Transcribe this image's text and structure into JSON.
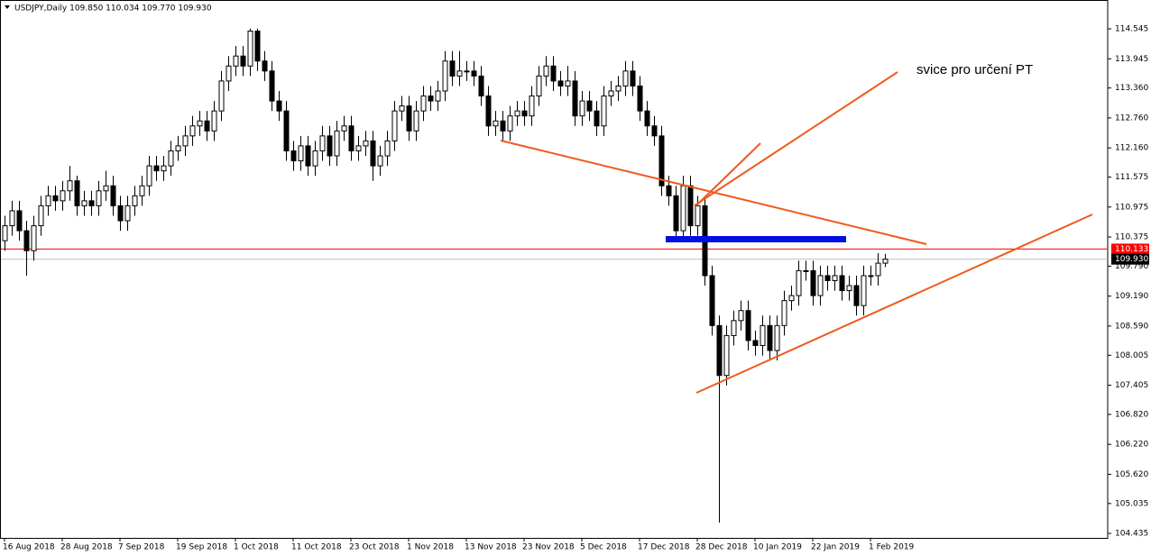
{
  "chart_data": {
    "type": "candlestick",
    "title": "USDJPY,Daily  109.850 110.034 109.770 109.930",
    "categories": [
      "16 Aug 2018",
      null,
      null,
      null,
      null,
      null,
      null,
      null,
      "28 Aug 2018",
      null,
      null,
      null,
      null,
      null,
      null,
      null,
      "7 Sep 2018",
      null,
      null,
      null,
      null,
      null,
      null,
      null,
      "19 Sep 2018",
      null,
      null,
      null,
      null,
      null,
      null,
      null,
      "1 Oct 2018",
      null,
      null,
      null,
      null,
      null,
      null,
      null,
      "11 Oct 2018",
      null,
      null,
      null,
      null,
      null,
      null,
      null,
      "23 Oct 2018",
      null,
      null,
      null,
      null,
      null,
      null,
      null,
      "1 Nov 2018",
      null,
      null,
      null,
      null,
      null,
      null,
      null,
      "13 Nov 2018",
      null,
      null,
      null,
      null,
      null,
      null,
      null,
      "23 Nov 2018",
      null,
      null,
      null,
      null,
      null,
      null,
      null,
      "5 Dec 2018",
      null,
      null,
      null,
      null,
      null,
      null,
      null,
      "17 Dec 2018",
      null,
      null,
      null,
      null,
      null,
      null,
      null,
      "28 Dec 2018",
      null,
      null,
      null,
      null,
      null,
      null,
      null,
      "10 Jan 2019",
      null,
      null,
      null,
      null,
      null,
      null,
      null,
      "22 Jan 2019",
      null,
      null,
      null,
      null,
      null,
      null,
      null,
      "1 Feb 2019",
      null,
      null
    ],
    "open": [
      110.3,
      110.6,
      110.9,
      110.5,
      110.1,
      110.6,
      111.0,
      111.2,
      111.1,
      111.3,
      111.5,
      111.0,
      111.1,
      111.0,
      111.3,
      111.4,
      111.0,
      110.7,
      111.0,
      111.2,
      111.4,
      111.8,
      111.7,
      111.8,
      112.1,
      112.2,
      112.4,
      112.6,
      112.7,
      112.5,
      112.9,
      113.5,
      113.8,
      114.0,
      113.8,
      114.5,
      113.9,
      113.7,
      113.1,
      112.9,
      112.1,
      111.9,
      112.2,
      111.8,
      112.1,
      112.4,
      112.0,
      112.5,
      112.6,
      112.1,
      112.2,
      112.3,
      111.8,
      112.0,
      112.3,
      112.9,
      113.0,
      112.5,
      112.9,
      113.2,
      113.1,
      113.3,
      113.9,
      113.6,
      113.7,
      113.7,
      113.6,
      113.2,
      112.6,
      112.7,
      112.5,
      112.8,
      112.9,
      112.8,
      113.2,
      113.6,
      113.8,
      113.5,
      113.4,
      113.5,
      112.8,
      113.1,
      112.9,
      112.6,
      113.2,
      113.3,
      113.4,
      113.7,
      113.4,
      112.9,
      112.6,
      112.4,
      111.4,
      111.2,
      110.5,
      111.4,
      110.6,
      111.0,
      109.6,
      108.6,
      107.6,
      108.4,
      108.7,
      108.9,
      108.3,
      108.2,
      108.6,
      108.1,
      108.6,
      109.1,
      109.2,
      109.7,
      109.7,
      109.2,
      109.6,
      109.5,
      109.6,
      109.3,
      109.4,
      109.0,
      109.6,
      109.6,
      109.85
    ],
    "high": [
      110.8,
      111.1,
      111.1,
      110.7,
      110.8,
      111.2,
      111.4,
      111.4,
      111.5,
      111.8,
      111.6,
      111.3,
      111.3,
      111.5,
      111.7,
      111.6,
      111.2,
      111.2,
      111.4,
      111.6,
      112.0,
      112.0,
      112.0,
      112.3,
      112.4,
      112.6,
      112.8,
      112.9,
      112.9,
      113.1,
      113.7,
      114.0,
      114.2,
      114.2,
      114.55,
      114.55,
      114.1,
      113.9,
      113.3,
      113.1,
      112.3,
      112.4,
      112.4,
      112.3,
      112.6,
      112.6,
      112.7,
      112.8,
      112.8,
      112.4,
      112.5,
      112.5,
      112.2,
      112.5,
      113.1,
      113.2,
      113.2,
      113.1,
      113.4,
      113.4,
      113.5,
      114.1,
      114.1,
      114.1,
      113.9,
      113.9,
      113.8,
      113.4,
      112.9,
      112.9,
      113.0,
      113.1,
      113.1,
      113.4,
      113.8,
      114.0,
      114.0,
      113.7,
      113.8,
      113.7,
      113.3,
      113.3,
      113.1,
      113.4,
      113.5,
      113.6,
      113.9,
      113.9,
      113.6,
      113.1,
      112.8,
      112.6,
      111.6,
      111.4,
      111.6,
      111.6,
      111.2,
      111.2,
      109.8,
      108.8,
      108.6,
      108.9,
      109.1,
      109.1,
      108.5,
      108.8,
      108.8,
      108.8,
      109.3,
      109.4,
      109.9,
      109.9,
      109.9,
      109.8,
      109.8,
      109.8,
      109.8,
      109.6,
      109.6,
      109.8,
      109.8,
      110.05,
      110.034
    ],
    "low": [
      110.1,
      110.4,
      110.3,
      109.6,
      109.9,
      110.4,
      110.8,
      110.9,
      110.9,
      111.1,
      110.8,
      110.8,
      110.8,
      110.8,
      111.1,
      110.8,
      110.5,
      110.5,
      110.8,
      111.0,
      111.2,
      111.5,
      111.5,
      111.6,
      111.9,
      112.0,
      112.2,
      112.4,
      112.3,
      112.3,
      112.7,
      113.3,
      113.6,
      113.6,
      113.6,
      113.7,
      113.5,
      112.9,
      112.7,
      111.9,
      111.7,
      111.7,
      111.6,
      111.6,
      111.9,
      111.8,
      111.8,
      112.3,
      111.9,
      111.9,
      112.0,
      111.5,
      111.6,
      111.8,
      112.1,
      112.7,
      112.3,
      112.3,
      112.7,
      112.9,
      112.9,
      113.1,
      113.4,
      113.4,
      113.5,
      113.4,
      113.0,
      112.4,
      112.4,
      112.3,
      112.3,
      112.6,
      112.6,
      112.6,
      113.0,
      113.4,
      113.3,
      113.2,
      113.2,
      112.6,
      112.6,
      112.7,
      112.4,
      112.4,
      113.0,
      113.1,
      113.2,
      113.2,
      112.7,
      112.4,
      112.2,
      111.2,
      111.0,
      110.3,
      110.3,
      110.4,
      110.4,
      109.4,
      108.4,
      104.65,
      107.4,
      108.2,
      108.5,
      108.1,
      108.0,
      108.0,
      107.9,
      107.9,
      108.4,
      108.9,
      109.0,
      109.5,
      109.0,
      109.0,
      109.3,
      109.3,
      109.1,
      109.1,
      108.8,
      108.8,
      109.4,
      109.4,
      109.77
    ],
    "close": [
      110.6,
      110.9,
      110.5,
      110.1,
      110.6,
      111.0,
      111.2,
      111.1,
      111.3,
      111.5,
      111.0,
      111.1,
      111.0,
      111.3,
      111.4,
      111.0,
      110.7,
      111.0,
      111.2,
      111.4,
      111.8,
      111.7,
      111.8,
      112.1,
      112.2,
      112.4,
      112.6,
      112.7,
      112.5,
      112.9,
      113.5,
      113.8,
      114.0,
      113.8,
      114.5,
      113.9,
      113.7,
      113.1,
      112.9,
      112.1,
      111.9,
      112.2,
      111.8,
      112.1,
      112.4,
      112.0,
      112.5,
      112.6,
      112.1,
      112.2,
      112.3,
      111.8,
      112.0,
      112.3,
      112.9,
      113.0,
      112.5,
      112.9,
      113.2,
      113.1,
      113.3,
      113.9,
      113.6,
      113.7,
      113.7,
      113.6,
      113.2,
      112.6,
      112.7,
      112.5,
      112.8,
      112.9,
      112.8,
      113.2,
      113.6,
      113.8,
      113.5,
      113.4,
      113.5,
      112.8,
      113.1,
      112.9,
      112.6,
      113.2,
      113.3,
      113.4,
      113.7,
      113.4,
      112.9,
      112.6,
      112.4,
      111.4,
      111.2,
      110.5,
      111.4,
      110.6,
      111.0,
      109.6,
      108.6,
      107.6,
      108.4,
      108.7,
      108.9,
      108.3,
      108.2,
      108.6,
      108.1,
      108.6,
      109.1,
      109.2,
      109.7,
      109.7,
      109.2,
      109.6,
      109.5,
      109.6,
      109.3,
      109.4,
      109.0,
      109.6,
      109.6,
      109.85,
      109.93
    ],
    "ylim": [
      104.346,
      115.123
    ],
    "yticks": [
      114.545,
      113.945,
      {
        "value": 113.36,
        "label": "113.360"
      },
      {
        "value": 112.76,
        "label": "112.760"
      },
      {
        "value": 112.16,
        "label": "112.160"
      },
      111.575,
      110.975,
      110.375,
      {
        "value": 109.79,
        "label": "109.790"
      },
      {
        "value": 109.19,
        "label": "109.190"
      },
      {
        "value": 108.59,
        "label": "108.590"
      },
      108.005,
      107.405,
      {
        "value": 106.82,
        "label": "106.820"
      },
      {
        "value": 106.22,
        "label": "106.220"
      },
      {
        "value": 105.62,
        "label": "105.620"
      },
      105.035,
      104.435
    ],
    "price_lines": [
      {
        "value": 110.133,
        "label": "110.133",
        "color": "#ff0000"
      },
      {
        "value": 109.93,
        "label": "109.930",
        "color": "#c0c0c0"
      }
    ],
    "up_color": "#ffffff",
    "down_color": "#000000",
    "annotations": [
      {
        "text": "svice pro určení PT"
      }
    ]
  }
}
